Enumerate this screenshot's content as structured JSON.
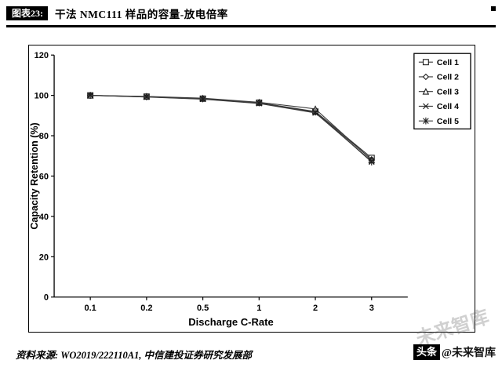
{
  "header": {
    "label": "图表23:",
    "title": "干法 NMC111 样品的容量-放电倍率"
  },
  "chart_data": {
    "type": "line",
    "title": "",
    "categories": [
      "0.1",
      "0.2",
      "0.5",
      "1",
      "2",
      "3"
    ],
    "series": [
      {
        "name": "Cell 1",
        "marker": "square",
        "values": [
          100,
          99.4,
          98.4,
          96.4,
          92.0,
          69.0
        ]
      },
      {
        "name": "Cell 2",
        "marker": "diamond",
        "values": [
          100,
          99.3,
          98.2,
          96.2,
          91.6,
          68.3
        ]
      },
      {
        "name": "Cell 3",
        "marker": "triangle",
        "values": [
          100,
          99.5,
          98.6,
          96.6,
          93.3,
          68.0
        ]
      },
      {
        "name": "Cell 4",
        "marker": "x",
        "values": [
          100,
          99.2,
          98.1,
          96.0,
          91.3,
          67.4
        ]
      },
      {
        "name": "Cell 5",
        "marker": "asterisk",
        "values": [
          100,
          99.3,
          98.3,
          96.3,
          91.8,
          67.0
        ]
      }
    ],
    "xlabel": "Discharge C-Rate",
    "ylabel": "Capacity Retention (%)",
    "ylim": [
      0,
      120
    ],
    "yticks": [
      0,
      20,
      40,
      60,
      80,
      100,
      120
    ],
    "grid": false,
    "legend_position": "right",
    "line_color": "#3a3a3a",
    "marker_color": "#1e1e1e"
  },
  "footer": {
    "source": "资料来源: WO2019/222110A1, 中信建投证券研究发展部",
    "badge": "头条",
    "handle": "@未来智库",
    "watermark": "未来智库"
  }
}
